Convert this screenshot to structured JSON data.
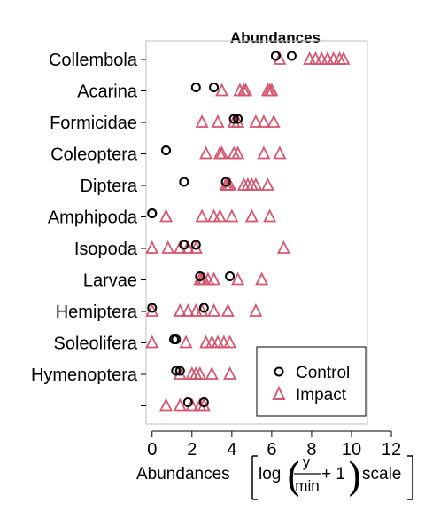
{
  "chart_data": {
    "type": "scatter",
    "title": "Abundances",
    "xlabel_prefix": "Abundances",
    "xlabel_log": "log",
    "xlabel_numerator": "y",
    "xlabel_denominator": "min",
    "xlabel_plus_one": "+ 1",
    "xlabel_suffix": "scale",
    "xlim": [
      -0.3,
      10.8
    ],
    "xticks": [
      "0",
      "2",
      "4",
      "6",
      "8",
      "10",
      "12"
    ],
    "xtick_values": [
      0,
      2,
      4,
      6,
      8,
      10,
      12
    ],
    "categories": [
      "Collembola",
      "Acarina",
      "Formicidae",
      "Coleoptera",
      "Diptera",
      "Amphipoda",
      "Isopoda",
      "Larvae",
      "Hemiptera",
      "Soleolifera",
      "Hymenoptera",
      ""
    ],
    "legend_position": "bottom-right",
    "series": [
      {
        "name": "Control",
        "marker": "circle",
        "color": "#000000",
        "values": [
          [
            6.2,
            7.0
          ],
          [
            2.2,
            3.1
          ],
          [
            4.1,
            4.3
          ],
          [
            0.7,
            0.7
          ],
          [
            1.6,
            3.7
          ],
          [
            0.0,
            0.0
          ],
          [
            1.6,
            2.2
          ],
          [
            2.4,
            3.9
          ],
          [
            0.0,
            2.6
          ],
          [
            1.1,
            1.2
          ],
          [
            1.2,
            1.4
          ],
          [
            1.8,
            2.6
          ]
        ]
      },
      {
        "name": "Impact",
        "marker": "triangle",
        "color": "#d6566e",
        "values": [
          [
            6.4,
            7.9,
            8.2,
            8.5,
            8.8,
            9.1,
            9.4,
            9.6
          ],
          [
            3.5,
            4.4,
            4.6,
            4.7,
            5.8,
            5.9,
            6.0
          ],
          [
            2.5,
            3.3,
            4.1,
            4.3,
            5.2,
            5.6,
            6.1
          ],
          [
            2.7,
            3.4,
            3.5,
            4.1,
            4.3,
            5.6,
            6.4
          ],
          [
            3.7,
            3.8,
            3.9,
            4.6,
            4.8,
            5.0,
            5.2,
            5.8
          ],
          [
            0.7,
            2.5,
            3.1,
            3.4,
            4.0,
            5.0,
            5.9
          ],
          [
            0.0,
            0.8,
            1.4,
            1.8,
            2.2,
            6.6
          ],
          [
            2.4,
            2.5,
            2.6,
            2.8,
            3.1,
            4.3,
            5.5
          ],
          [
            0.0,
            1.4,
            1.8,
            2.2,
            2.5,
            3.1,
            3.8,
            5.2
          ],
          [
            0.0,
            1.7,
            2.7,
            3.0,
            3.3,
            3.6,
            3.9
          ],
          [
            1.4,
            2.0,
            2.2,
            2.4,
            3.0,
            3.9
          ],
          [
            0.7,
            1.4,
            2.0,
            2.4,
            2.6
          ]
        ]
      }
    ]
  }
}
